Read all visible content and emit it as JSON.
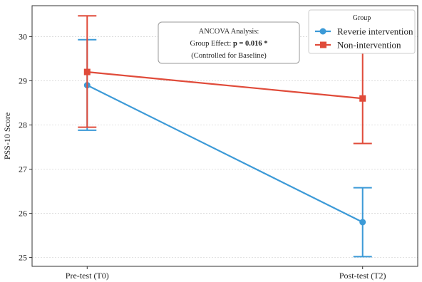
{
  "chart_data": {
    "type": "line",
    "title": "",
    "xlabel": "",
    "ylabel": "PSS-10 Score",
    "categories": [
      "Pre-test (T0)",
      "Post-test (T2)"
    ],
    "ylim": [
      24.8,
      30.7
    ],
    "yticks": [
      25,
      26,
      27,
      28,
      29,
      30
    ],
    "grid": "horizontal-dotted",
    "legend": {
      "title": "Group",
      "placement": "top-right"
    },
    "series": [
      {
        "name": "Reverie intervention",
        "color": "#3c9ad7",
        "marker": "circle",
        "values": [
          28.9,
          25.8
        ],
        "error_low": [
          27.88,
          25.02
        ],
        "error_high": [
          29.93,
          26.58
        ]
      },
      {
        "name": "Non-intervention",
        "color": "#e04b3a",
        "marker": "square",
        "values": [
          29.2,
          28.6
        ],
        "error_low": [
          27.95,
          27.58
        ],
        "error_high": [
          30.47,
          29.63
        ]
      }
    ],
    "annotation": {
      "line1": "ANCOVA Analysis:",
      "line2_prefix": "Group Effect: ",
      "line2_bold": "p = 0.016 *",
      "line3": "(Controlled for Baseline)"
    }
  }
}
